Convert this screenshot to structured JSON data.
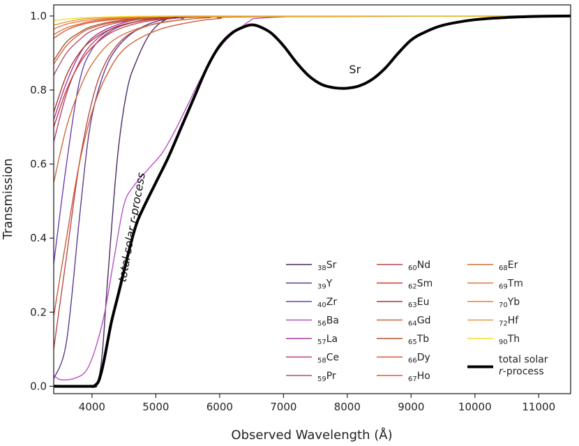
{
  "chart_data": {
    "type": "line",
    "title": "",
    "xlabel": "Observed Wavelength (Å)",
    "ylabel": "Transmission",
    "xlim": [
      3400,
      11500
    ],
    "ylim": [
      -0.02,
      1.03
    ],
    "xticks": [
      4000,
      5000,
      6000,
      7000,
      8000,
      9000,
      10000,
      11000
    ],
    "xtick_labels": [
      "4000",
      "5000",
      "6000",
      "7000",
      "8000",
      "9000",
      "10000",
      "11000"
    ],
    "yticks": [
      0.0,
      0.2,
      0.4,
      0.6,
      0.8,
      1.0
    ],
    "ytick_labels": [
      "0.0",
      "0.2",
      "0.4",
      "0.6",
      "0.8",
      "1.0"
    ],
    "annotations": [
      {
        "text": "Sr",
        "x": 8120,
        "y": 0.845
      },
      {
        "text": "total solar r-process",
        "prefix": "total solar ",
        "italic": "r",
        "suffix": "-process",
        "x": 4530,
        "y": 0.28,
        "rotation": -80
      }
    ],
    "series": [
      {
        "name": "Sr",
        "Z": "38",
        "color": "#4a2a5e",
        "width": 1.4,
        "points": [
          [
            3400,
            0
          ],
          [
            3900,
            0
          ],
          [
            4050,
            0.002
          ],
          [
            4150,
            0.07
          ],
          [
            4250,
            0.3
          ],
          [
            4400,
            0.62
          ],
          [
            4550,
            0.8
          ],
          [
            4700,
            0.88
          ],
          [
            4900,
            0.95
          ],
          [
            5100,
            0.985
          ],
          [
            5300,
            0.995
          ],
          [
            5800,
            1
          ],
          [
            11500,
            1
          ]
        ]
      },
      {
        "name": "Y",
        "Z": "39",
        "color": "#5a3a8c",
        "width": 1.4,
        "points": [
          [
            3400,
            0.02
          ],
          [
            3600,
            0.12
          ],
          [
            3800,
            0.45
          ],
          [
            3950,
            0.68
          ],
          [
            4100,
            0.8
          ],
          [
            4300,
            0.89
          ],
          [
            4600,
            0.95
          ],
          [
            5000,
            0.985
          ],
          [
            5500,
            0.997
          ],
          [
            6000,
            1
          ],
          [
            11500,
            1
          ]
        ]
      },
      {
        "name": "Zr",
        "Z": "40",
        "color": "#6b3fb0",
        "width": 1.4,
        "points": [
          [
            3400,
            0.33
          ],
          [
            3600,
            0.6
          ],
          [
            3800,
            0.82
          ],
          [
            4000,
            0.91
          ],
          [
            4300,
            0.96
          ],
          [
            4700,
            0.985
          ],
          [
            5200,
            0.996
          ],
          [
            6000,
            1
          ],
          [
            11500,
            1
          ]
        ]
      },
      {
        "name": "Ba",
        "Z": "56",
        "color": "#b84fc4",
        "width": 1.4,
        "points": [
          [
            3400,
            0.03
          ],
          [
            3500,
            0.018
          ],
          [
            3700,
            0.02
          ],
          [
            3900,
            0.04
          ],
          [
            4050,
            0.1
          ],
          [
            4200,
            0.2
          ],
          [
            4350,
            0.35
          ],
          [
            4500,
            0.49
          ],
          [
            4650,
            0.54
          ],
          [
            4900,
            0.59
          ],
          [
            5100,
            0.63
          ],
          [
            5300,
            0.69
          ],
          [
            5500,
            0.76
          ],
          [
            5700,
            0.83
          ],
          [
            5900,
            0.89
          ],
          [
            6100,
            0.935
          ],
          [
            6300,
            0.965
          ],
          [
            6500,
            0.99
          ],
          [
            6550,
            0.993
          ],
          [
            6700,
            0.995
          ],
          [
            7000,
            0.998
          ],
          [
            7500,
            1
          ],
          [
            11500,
            1
          ]
        ]
      },
      {
        "name": "La",
        "Z": "57",
        "color": "#a83a9c",
        "width": 1.4,
        "points": [
          [
            3400,
            0.72
          ],
          [
            3600,
            0.82
          ],
          [
            3800,
            0.895
          ],
          [
            4000,
            0.94
          ],
          [
            4300,
            0.97
          ],
          [
            4700,
            0.99
          ],
          [
            5200,
            0.997
          ],
          [
            6000,
            1
          ],
          [
            11500,
            1
          ]
        ]
      },
      {
        "name": "Ce",
        "Z": "58",
        "color": "#b2417a",
        "width": 1.4,
        "points": [
          [
            3400,
            0.66
          ],
          [
            3600,
            0.79
          ],
          [
            3800,
            0.875
          ],
          [
            4000,
            0.925
          ],
          [
            4300,
            0.965
          ],
          [
            4700,
            0.985
          ],
          [
            5200,
            0.995
          ],
          [
            6000,
            1
          ],
          [
            11500,
            1
          ]
        ]
      },
      {
        "name": "Pr",
        "Z": "59",
        "color": "#b84a6a",
        "width": 1.4,
        "points": [
          [
            3400,
            0.84
          ],
          [
            3600,
            0.9
          ],
          [
            3800,
            0.935
          ],
          [
            4000,
            0.96
          ],
          [
            4400,
            0.982
          ],
          [
            4900,
            0.993
          ],
          [
            5500,
            0.999
          ],
          [
            11500,
            1
          ]
        ]
      },
      {
        "name": "Nd",
        "Z": "60",
        "color": "#b9474b",
        "width": 1.4,
        "points": [
          [
            3400,
            0.1
          ],
          [
            3600,
            0.35
          ],
          [
            3800,
            0.6
          ],
          [
            4000,
            0.77
          ],
          [
            4200,
            0.87
          ],
          [
            4500,
            0.94
          ],
          [
            4900,
            0.975
          ],
          [
            5400,
            0.99
          ],
          [
            6000,
            0.998
          ],
          [
            11500,
            1
          ]
        ]
      },
      {
        "name": "Sm",
        "Z": "62",
        "color": "#c73b34",
        "width": 1.4,
        "points": [
          [
            3400,
            0.7
          ],
          [
            3600,
            0.8
          ],
          [
            3800,
            0.87
          ],
          [
            4000,
            0.915
          ],
          [
            4300,
            0.955
          ],
          [
            4700,
            0.98
          ],
          [
            5200,
            0.993
          ],
          [
            6000,
            1
          ],
          [
            11500,
            1
          ]
        ]
      },
      {
        "name": "Eu",
        "Z": "63",
        "color": "#a63a2a",
        "width": 1.4,
        "points": [
          [
            3400,
            0.74
          ],
          [
            3600,
            0.84
          ],
          [
            3800,
            0.9
          ],
          [
            4000,
            0.935
          ],
          [
            4300,
            0.965
          ],
          [
            4700,
            0.985
          ],
          [
            5300,
            0.997
          ],
          [
            6000,
            1
          ],
          [
            11500,
            1
          ]
        ]
      },
      {
        "name": "Gd",
        "Z": "64",
        "color": "#c4633a",
        "width": 1.4,
        "points": [
          [
            3400,
            0.87
          ],
          [
            3600,
            0.92
          ],
          [
            3800,
            0.95
          ],
          [
            4000,
            0.968
          ],
          [
            4400,
            0.985
          ],
          [
            4900,
            0.994
          ],
          [
            5600,
            1
          ],
          [
            11500,
            1
          ]
        ]
      },
      {
        "name": "Tb",
        "Z": "65",
        "color": "#b5502e",
        "width": 1.4,
        "points": [
          [
            3400,
            0.88
          ],
          [
            3600,
            0.93
          ],
          [
            3800,
            0.955
          ],
          [
            4000,
            0.972
          ],
          [
            4400,
            0.987
          ],
          [
            5000,
            0.996
          ],
          [
            5800,
            1
          ],
          [
            11500,
            1
          ]
        ]
      },
      {
        "name": "Dy",
        "Z": "66",
        "color": "#cc5a36",
        "width": 1.4,
        "points": [
          [
            3400,
            0.19
          ],
          [
            3600,
            0.4
          ],
          [
            3800,
            0.6
          ],
          [
            4000,
            0.74
          ],
          [
            4200,
            0.83
          ],
          [
            4500,
            0.91
          ],
          [
            5000,
            0.96
          ],
          [
            5600,
            0.985
          ],
          [
            6000,
            0.993
          ],
          [
            6500,
            0.998
          ],
          [
            11500,
            1
          ]
        ]
      },
      {
        "name": "Ho",
        "Z": "67",
        "color": "#e0553a",
        "width": 1.4,
        "points": [
          [
            3400,
            0.94
          ],
          [
            3600,
            0.962
          ],
          [
            3800,
            0.975
          ],
          [
            4000,
            0.983
          ],
          [
            4400,
            0.991
          ],
          [
            5000,
            0.997
          ],
          [
            5800,
            1
          ],
          [
            11500,
            1
          ]
        ]
      },
      {
        "name": "Er",
        "Z": "68",
        "color": "#cf6a3a",
        "width": 1.4,
        "points": [
          [
            3400,
            0.55
          ],
          [
            3600,
            0.7
          ],
          [
            3800,
            0.8
          ],
          [
            4000,
            0.87
          ],
          [
            4300,
            0.93
          ],
          [
            4700,
            0.965
          ],
          [
            5200,
            0.985
          ],
          [
            5800,
            0.995
          ],
          [
            6500,
            1
          ],
          [
            11500,
            1
          ]
        ]
      },
      {
        "name": "Tm",
        "Z": "69",
        "color": "#d9743c",
        "width": 1.4,
        "points": [
          [
            3400,
            0.95
          ],
          [
            3600,
            0.968
          ],
          [
            3800,
            0.978
          ],
          [
            4000,
            0.986
          ],
          [
            4500,
            0.994
          ],
          [
            5200,
            0.998
          ],
          [
            6000,
            1
          ],
          [
            11500,
            1
          ]
        ]
      },
      {
        "name": "Yb",
        "Z": "70",
        "color": "#ee7a3a",
        "width": 1.4,
        "points": [
          [
            3400,
            0.965
          ],
          [
            3600,
            0.978
          ],
          [
            3800,
            0.985
          ],
          [
            4000,
            0.99
          ],
          [
            4500,
            0.996
          ],
          [
            5200,
            0.999
          ],
          [
            6000,
            1
          ],
          [
            11500,
            1
          ]
        ]
      },
      {
        "name": "Hf",
        "Z": "72",
        "color": "#e9953c",
        "width": 1.4,
        "points": [
          [
            3400,
            0.975
          ],
          [
            3600,
            0.984
          ],
          [
            3800,
            0.99
          ],
          [
            4000,
            0.994
          ],
          [
            4600,
            0.998
          ],
          [
            5500,
            1
          ],
          [
            11500,
            1
          ]
        ]
      },
      {
        "name": "Th",
        "Z": "90",
        "color": "#f3e027",
        "width": 1.4,
        "points": [
          [
            3400,
            0.988
          ],
          [
            3700,
            0.993
          ],
          [
            4000,
            0.996
          ],
          [
            4600,
            0.999
          ],
          [
            5500,
            1
          ],
          [
            11500,
            1
          ]
        ]
      },
      {
        "name": "total solar r-process",
        "label_line1": "total solar",
        "label_italic": "r",
        "label_suffix": "-process",
        "color": "#000000",
        "width": 4,
        "points": [
          [
            3400,
            0
          ],
          [
            4000,
            0
          ],
          [
            4050,
            0.003
          ],
          [
            4100,
            0.012
          ],
          [
            4150,
            0.04
          ],
          [
            4200,
            0.08
          ],
          [
            4300,
            0.17
          ],
          [
            4400,
            0.24
          ],
          [
            4500,
            0.31
          ],
          [
            4600,
            0.38
          ],
          [
            4700,
            0.44
          ],
          [
            4800,
            0.48
          ],
          [
            5000,
            0.55
          ],
          [
            5200,
            0.62
          ],
          [
            5400,
            0.7
          ],
          [
            5600,
            0.78
          ],
          [
            5800,
            0.86
          ],
          [
            6000,
            0.92
          ],
          [
            6200,
            0.955
          ],
          [
            6400,
            0.972
          ],
          [
            6500,
            0.976
          ],
          [
            6600,
            0.973
          ],
          [
            6800,
            0.955
          ],
          [
            7000,
            0.92
          ],
          [
            7200,
            0.875
          ],
          [
            7400,
            0.838
          ],
          [
            7600,
            0.815
          ],
          [
            7800,
            0.806
          ],
          [
            8000,
            0.805
          ],
          [
            8200,
            0.812
          ],
          [
            8400,
            0.83
          ],
          [
            8600,
            0.86
          ],
          [
            8800,
            0.9
          ],
          [
            9000,
            0.935
          ],
          [
            9200,
            0.955
          ],
          [
            9500,
            0.975
          ],
          [
            10000,
            0.99
          ],
          [
            10500,
            0.996
          ],
          [
            11000,
            0.999
          ],
          [
            11500,
            1
          ]
        ]
      }
    ]
  }
}
